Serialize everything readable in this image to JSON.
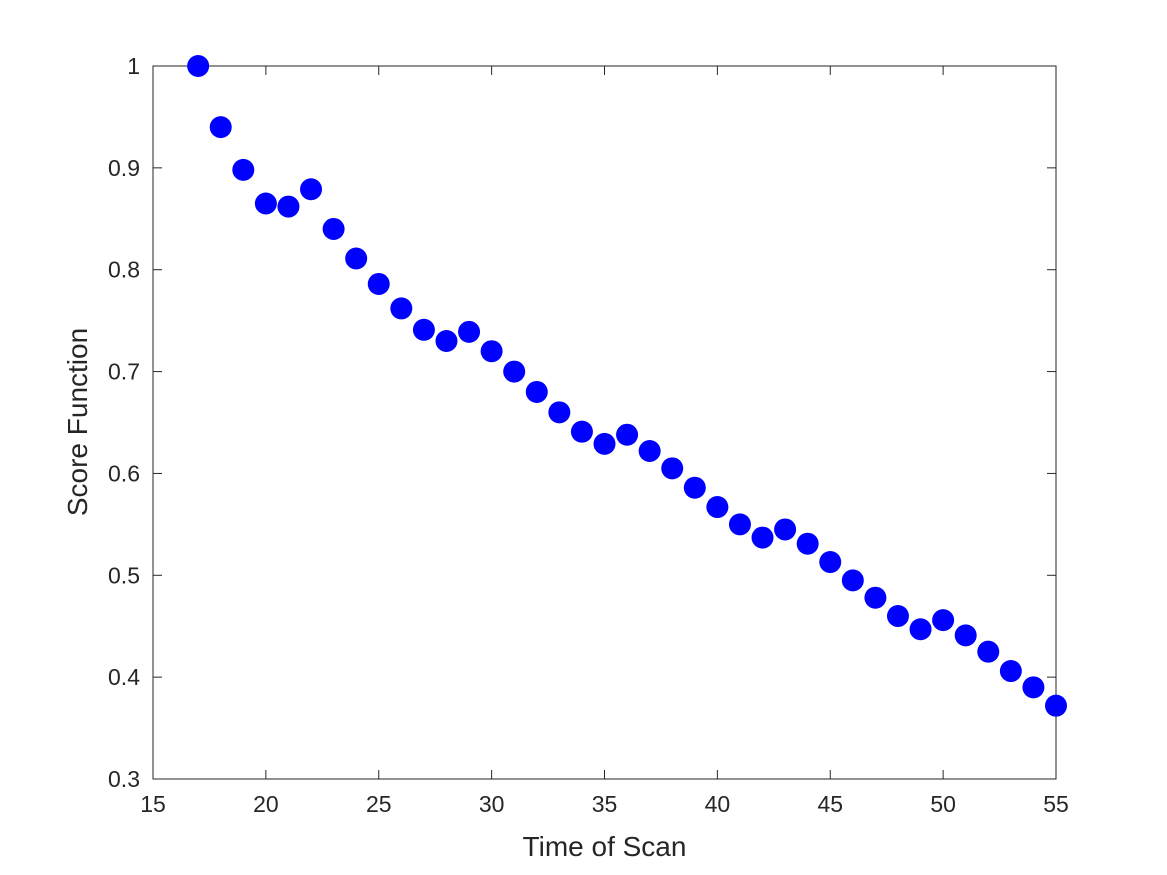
{
  "chart_data": {
    "type": "scatter",
    "xlabel": "Time of Scan",
    "ylabel": "Score Function",
    "xlim": [
      15,
      55
    ],
    "ylim": [
      0.3,
      1
    ],
    "xticks": [
      15,
      20,
      25,
      30,
      35,
      40,
      45,
      50,
      55
    ],
    "yticks": [
      0.3,
      0.4,
      0.5,
      0.6,
      0.7,
      0.8,
      0.9,
      1
    ],
    "ytick_labels": [
      "0.3",
      "0.4",
      "0.5",
      "0.6",
      "0.7",
      "0.8",
      "0.9",
      "1"
    ],
    "grid": false,
    "marker_color": "#0000ff",
    "points": [
      {
        "x": 17,
        "y": 1.0
      },
      {
        "x": 18,
        "y": 0.94
      },
      {
        "x": 19,
        "y": 0.898
      },
      {
        "x": 20,
        "y": 0.865
      },
      {
        "x": 21,
        "y": 0.862
      },
      {
        "x": 22,
        "y": 0.879
      },
      {
        "x": 23,
        "y": 0.84
      },
      {
        "x": 24,
        "y": 0.811
      },
      {
        "x": 25,
        "y": 0.786
      },
      {
        "x": 26,
        "y": 0.762
      },
      {
        "x": 27,
        "y": 0.741
      },
      {
        "x": 28,
        "y": 0.73
      },
      {
        "x": 29,
        "y": 0.739
      },
      {
        "x": 30,
        "y": 0.72
      },
      {
        "x": 31,
        "y": 0.7
      },
      {
        "x": 32,
        "y": 0.68
      },
      {
        "x": 33,
        "y": 0.66
      },
      {
        "x": 34,
        "y": 0.641
      },
      {
        "x": 35,
        "y": 0.629
      },
      {
        "x": 36,
        "y": 0.638
      },
      {
        "x": 37,
        "y": 0.622
      },
      {
        "x": 38,
        "y": 0.605
      },
      {
        "x": 39,
        "y": 0.586
      },
      {
        "x": 40,
        "y": 0.567
      },
      {
        "x": 41,
        "y": 0.55
      },
      {
        "x": 42,
        "y": 0.537
      },
      {
        "x": 43,
        "y": 0.545
      },
      {
        "x": 44,
        "y": 0.531
      },
      {
        "x": 45,
        "y": 0.513
      },
      {
        "x": 46,
        "y": 0.495
      },
      {
        "x": 47,
        "y": 0.478
      },
      {
        "x": 48,
        "y": 0.46
      },
      {
        "x": 49,
        "y": 0.447
      },
      {
        "x": 50,
        "y": 0.456
      },
      {
        "x": 51,
        "y": 0.441
      },
      {
        "x": 52,
        "y": 0.425
      },
      {
        "x": 53,
        "y": 0.406
      },
      {
        "x": 54,
        "y": 0.39
      },
      {
        "x": 55,
        "y": 0.372
      }
    ]
  }
}
